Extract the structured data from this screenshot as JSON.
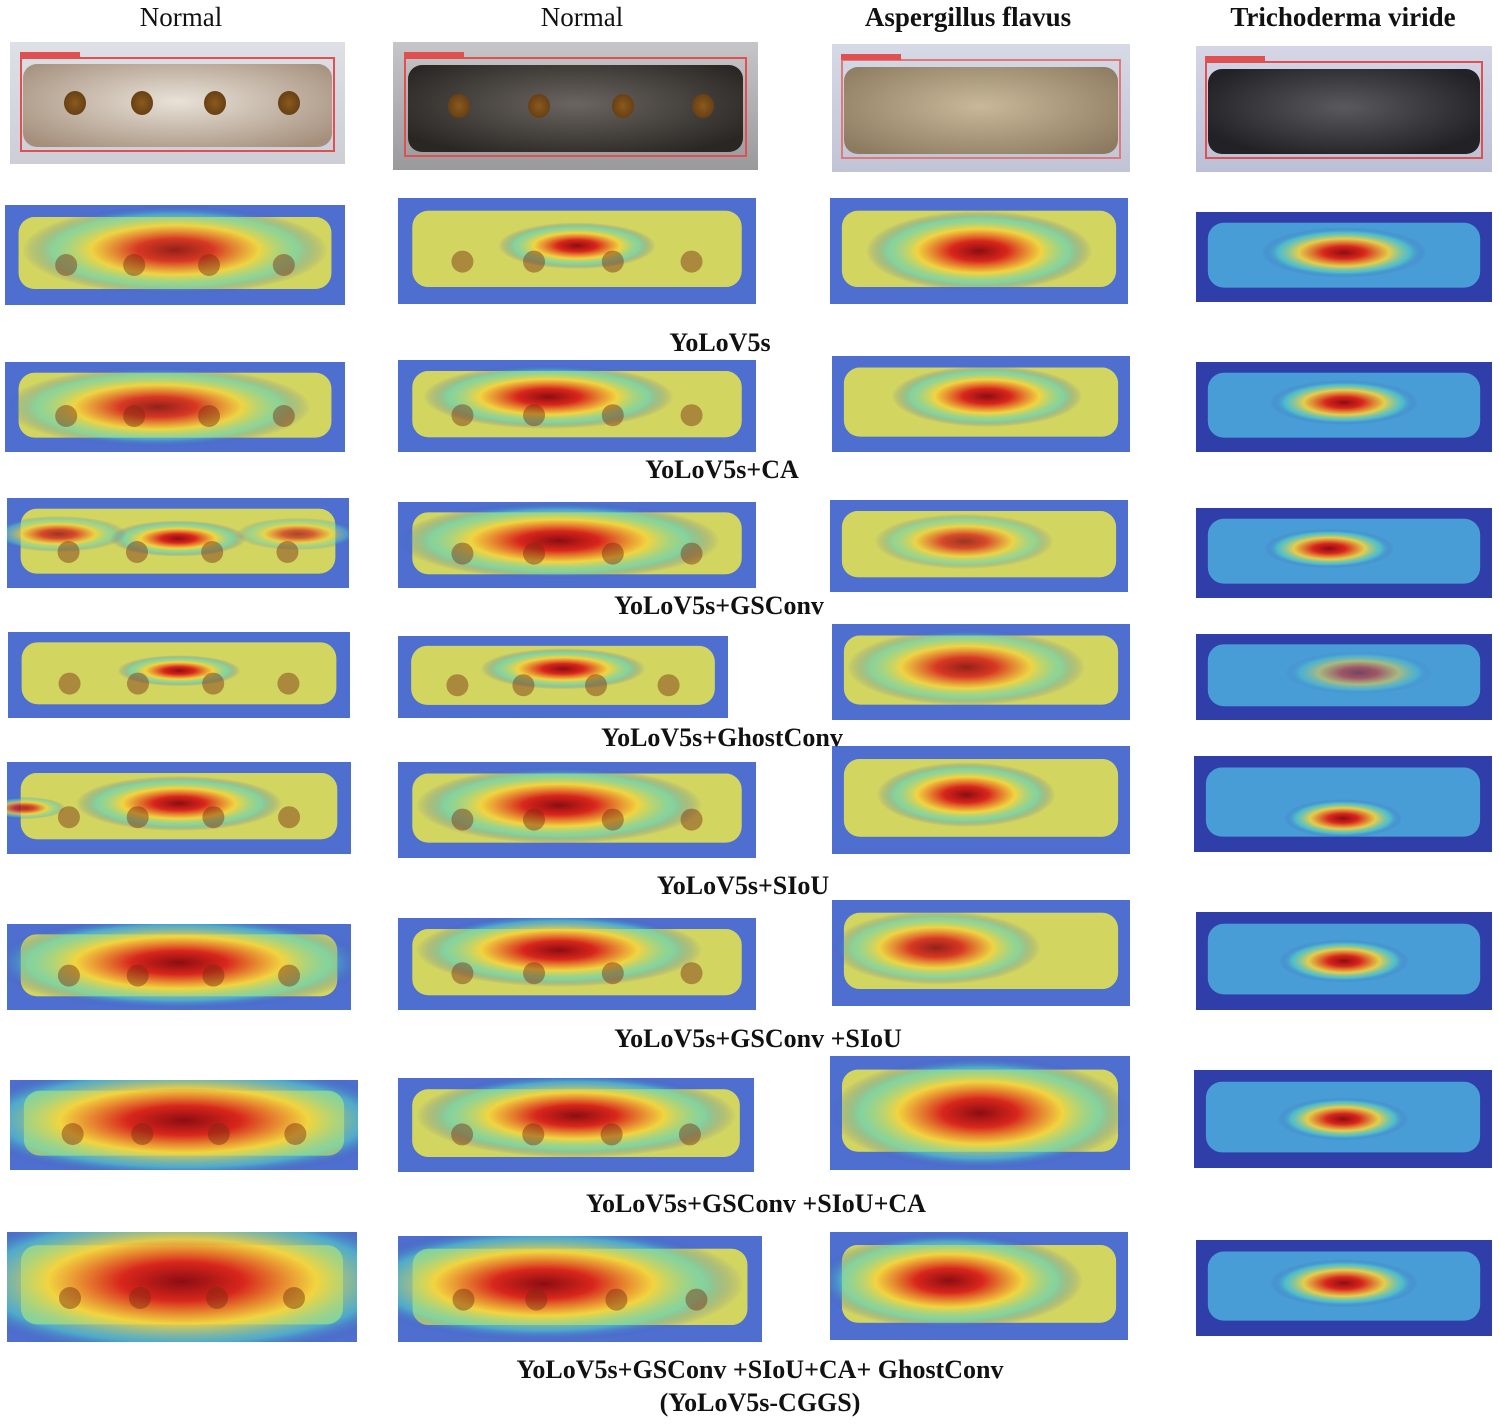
{
  "columns": [
    {
      "title": "Normal",
      "bold": false
    },
    {
      "title": "Normal",
      "bold": false
    },
    {
      "title": "Aspergillus flavus",
      "bold": true
    },
    {
      "title": "Trichoderma viride",
      "bold": true
    }
  ],
  "rows": [
    {
      "model": "YoLoV5s"
    },
    {
      "model": "YoLoV5s+CA"
    },
    {
      "model": "YoLoV5s+GSConv"
    },
    {
      "model": "YoLoV5s+GhostConv"
    },
    {
      "model": "YoLoV5s+SIoU"
    },
    {
      "model": "YoLoV5s+GSConv +SIoU"
    },
    {
      "model": "YoLoV5s+GSConv +SIoU+CA"
    },
    {
      "model": "YoLoV5s+GSConv +SIoU+CA+ GhostConv",
      "alias": "(YoLoV5s-CGGS)"
    }
  ],
  "colors": {
    "heat_low": "#3b3fae",
    "heat_mid": "#f2e94a",
    "heat_high": "#c8191e",
    "bbox": "#e05050"
  }
}
